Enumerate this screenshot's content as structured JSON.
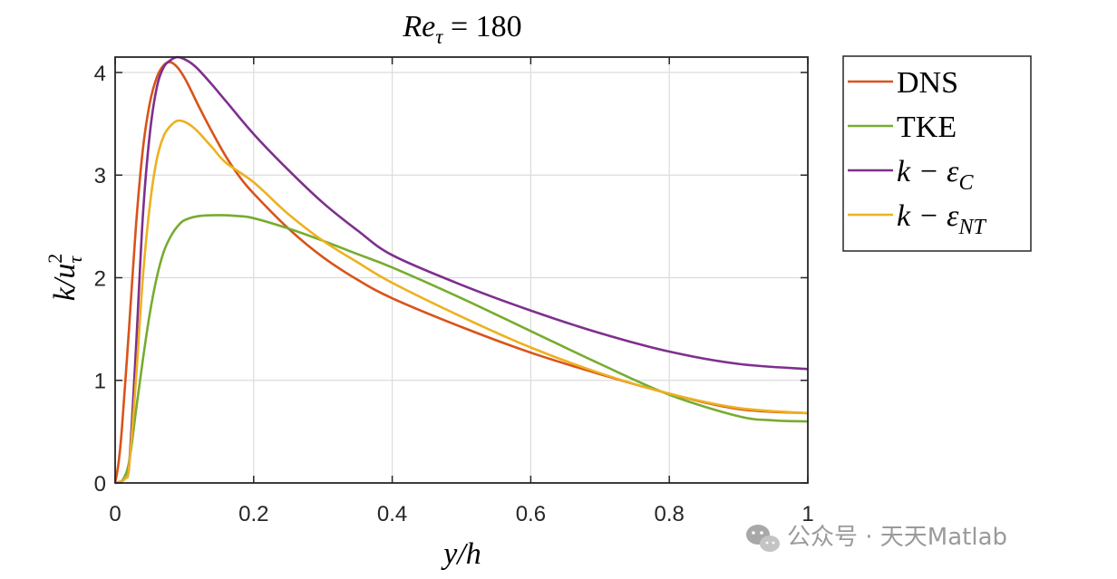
{
  "chart_data": {
    "type": "line",
    "title": "Re_τ = 180",
    "title_parts": {
      "main": "Re",
      "sub": "τ",
      "rest": " = 180"
    },
    "xlabel": "y/h",
    "ylabel": "k/u_τ^2",
    "ylabel_parts": {
      "main": "k/u",
      "sub": "τ",
      "sup": "2"
    },
    "xlim": [
      0,
      1
    ],
    "ylim": [
      0,
      4.15
    ],
    "xticks": [
      0,
      0.2,
      0.4,
      0.6,
      0.8,
      1
    ],
    "xtick_labels": [
      "0",
      "0.2",
      "0.4",
      "0.6",
      "0.8",
      "1"
    ],
    "yticks": [
      0,
      1,
      2,
      3,
      4
    ],
    "ytick_labels": [
      "0",
      "1",
      "2",
      "3",
      "4"
    ],
    "grid": true,
    "legend_position": "outside-right",
    "series": [
      {
        "name": "DNS",
        "legend_parts": {
          "main": "DNS",
          "sub": ""
        },
        "color": "#D95319",
        "x": [
          0,
          0.005,
          0.01,
          0.02,
          0.03,
          0.04,
          0.05,
          0.06,
          0.07,
          0.08,
          0.09,
          0.1,
          0.11,
          0.12,
          0.14,
          0.16,
          0.18,
          0.2,
          0.25,
          0.3,
          0.35,
          0.4,
          0.5,
          0.6,
          0.7,
          0.8,
          0.9,
          1.0
        ],
        "y": [
          0,
          0.2,
          0.55,
          1.5,
          2.5,
          3.25,
          3.7,
          3.95,
          4.07,
          4.1,
          4.05,
          3.95,
          3.82,
          3.68,
          3.42,
          3.18,
          2.98,
          2.82,
          2.48,
          2.2,
          1.98,
          1.8,
          1.52,
          1.27,
          1.06,
          0.87,
          0.72,
          0.68
        ]
      },
      {
        "name": "TKE",
        "legend_parts": {
          "main": "TKE",
          "sub": ""
        },
        "color": "#77AC30",
        "x": [
          0,
          0.01,
          0.02,
          0.03,
          0.04,
          0.05,
          0.06,
          0.07,
          0.08,
          0.09,
          0.1,
          0.12,
          0.15,
          0.18,
          0.2,
          0.25,
          0.3,
          0.35,
          0.4,
          0.5,
          0.6,
          0.7,
          0.8,
          0.9,
          0.95,
          1.0
        ],
        "y": [
          0,
          0.02,
          0.2,
          0.7,
          1.2,
          1.65,
          2.0,
          2.25,
          2.4,
          2.5,
          2.56,
          2.6,
          2.61,
          2.6,
          2.58,
          2.48,
          2.36,
          2.23,
          2.1,
          1.8,
          1.48,
          1.16,
          0.86,
          0.65,
          0.61,
          0.6
        ]
      },
      {
        "name": "k − ε_C",
        "legend_parts": {
          "main": "k − ε",
          "sub": "C"
        },
        "color": "#7E2F8E",
        "x": [
          0,
          0.01,
          0.015,
          0.02,
          0.03,
          0.04,
          0.05,
          0.06,
          0.07,
          0.08,
          0.09,
          0.1,
          0.11,
          0.12,
          0.14,
          0.16,
          0.2,
          0.25,
          0.3,
          0.35,
          0.4,
          0.5,
          0.6,
          0.7,
          0.8,
          0.9,
          1.0
        ],
        "y": [
          0,
          0.02,
          0.05,
          0.15,
          1.3,
          2.6,
          3.4,
          3.85,
          4.05,
          4.12,
          4.15,
          4.13,
          4.09,
          4.03,
          3.88,
          3.72,
          3.4,
          3.05,
          2.73,
          2.46,
          2.22,
          1.93,
          1.68,
          1.46,
          1.28,
          1.16,
          1.11
        ]
      },
      {
        "name": "k − ε_NT",
        "legend_parts": {
          "main": "k − ε",
          "sub": "NT"
        },
        "color": "#EDB120",
        "x": [
          0,
          0.01,
          0.015,
          0.02,
          0.03,
          0.04,
          0.05,
          0.06,
          0.07,
          0.08,
          0.09,
          0.1,
          0.11,
          0.12,
          0.14,
          0.16,
          0.2,
          0.25,
          0.3,
          0.35,
          0.4,
          0.5,
          0.6,
          0.7,
          0.8,
          0.9,
          1.0
        ],
        "y": [
          0,
          0.02,
          0.05,
          0.15,
          1.0,
          2.0,
          2.7,
          3.15,
          3.38,
          3.48,
          3.53,
          3.52,
          3.48,
          3.42,
          3.27,
          3.12,
          2.93,
          2.62,
          2.36,
          2.15,
          1.95,
          1.62,
          1.32,
          1.07,
          0.87,
          0.73,
          0.68
        ]
      }
    ]
  },
  "watermark": {
    "icon": "wechat-icon",
    "text": "公众号 · 天天Matlab"
  }
}
